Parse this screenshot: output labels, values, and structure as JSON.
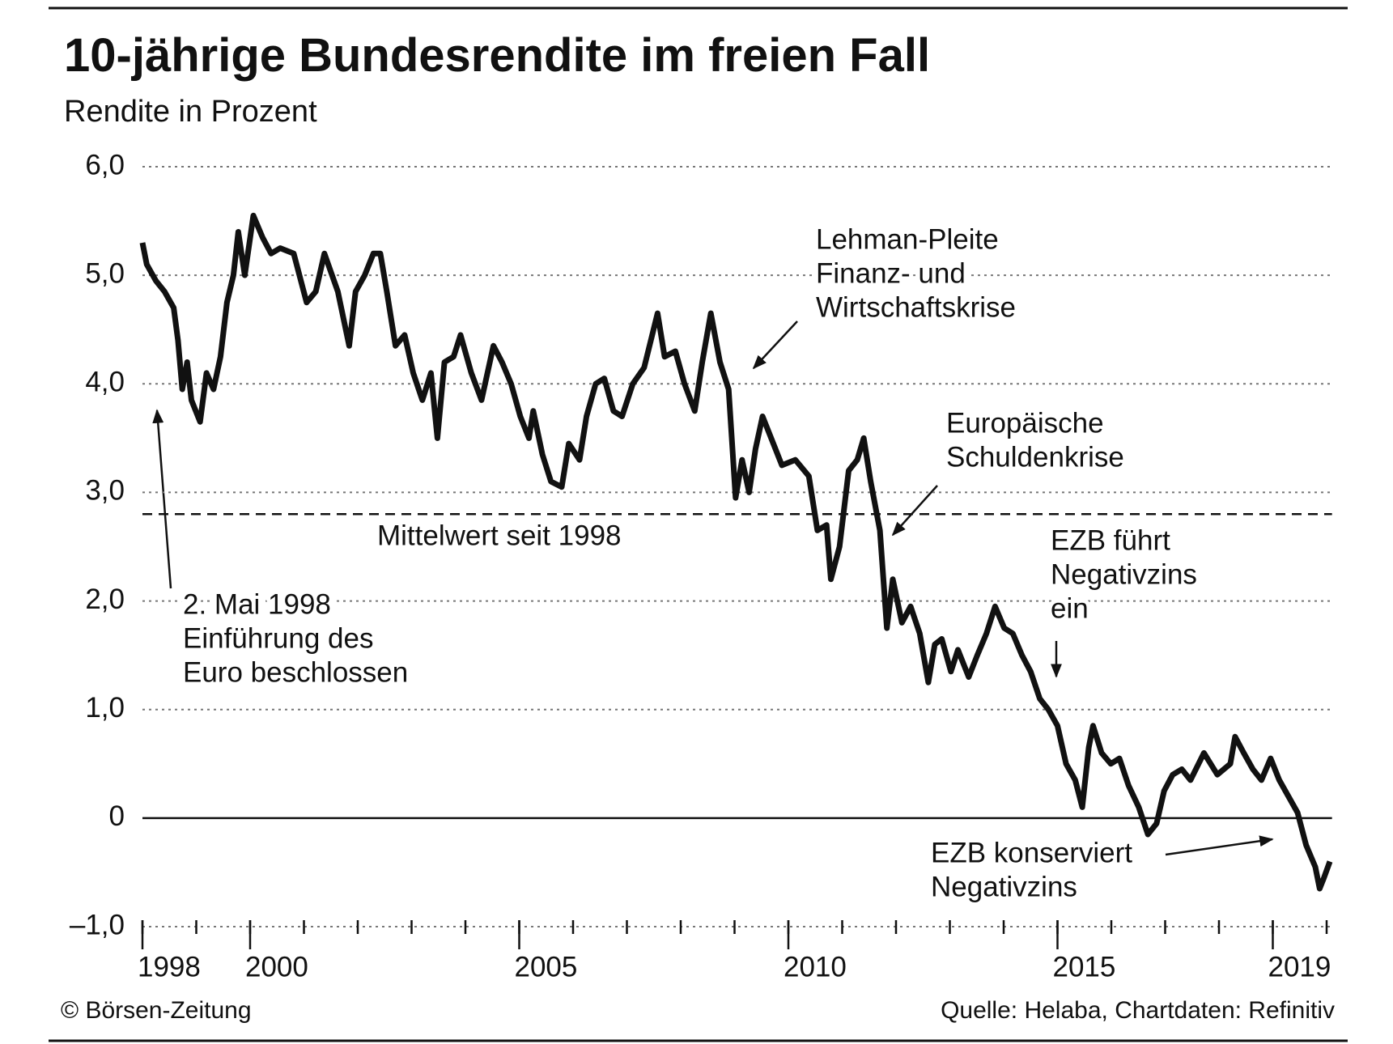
{
  "chart_data": {
    "type": "line",
    "title": "10-jährige Bundesrendite im freien Fall",
    "subtitle": "Rendite in Prozent",
    "x": [
      1998.0,
      1998.08,
      1998.25,
      1998.41,
      1998.58,
      1998.66,
      1998.74,
      1998.83,
      1998.91,
      1999.07,
      1999.19,
      1999.32,
      1999.45,
      1999.57,
      1999.69,
      1999.78,
      1999.9,
      2000.06,
      2000.23,
      2000.39,
      2000.56,
      2000.81,
      2001.05,
      2001.22,
      2001.38,
      2001.63,
      2001.84,
      2001.96,
      2002.13,
      2002.29,
      2002.42,
      2002.54,
      2002.7,
      2002.87,
      2003.03,
      2003.2,
      2003.36,
      2003.48,
      2003.61,
      2003.78,
      2003.91,
      2004.11,
      2004.3,
      2004.52,
      2004.68,
      2004.85,
      2005.02,
      2005.18,
      2005.26,
      2005.43,
      2005.59,
      2005.79,
      2005.92,
      2006.12,
      2006.25,
      2006.42,
      2006.58,
      2006.75,
      2006.91,
      2007.11,
      2007.32,
      2007.57,
      2007.7,
      2007.9,
      2008.07,
      2008.26,
      2008.4,
      2008.56,
      2008.73,
      2008.89,
      2009.02,
      2009.14,
      2009.27,
      2009.39,
      2009.52,
      2009.72,
      2009.88,
      2010.13,
      2010.38,
      2010.54,
      2010.71,
      2010.79,
      2010.95,
      2011.12,
      2011.28,
      2011.4,
      2011.53,
      2011.7,
      2011.83,
      2011.94,
      2012.11,
      2012.27,
      2012.44,
      2012.6,
      2012.72,
      2012.85,
      2013.02,
      2013.15,
      2013.35,
      2013.51,
      2013.68,
      2013.84,
      2014.01,
      2014.17,
      2014.34,
      2014.5,
      2014.67,
      2014.83,
      2015.0,
      2015.16,
      2015.33,
      2015.46,
      2015.58,
      2015.66,
      2015.82,
      2015.99,
      2016.15,
      2016.32,
      2016.51,
      2016.68,
      2016.84,
      2016.98,
      2017.14,
      2017.31,
      2017.47,
      2017.72,
      2017.97,
      2018.21,
      2018.3,
      2018.46,
      2018.63,
      2018.79,
      2018.96,
      2019.12,
      2019.29,
      2019.46,
      2019.62,
      2019.79,
      2019.87,
      2019.95,
      2020.06
    ],
    "series": [
      {
        "color": "#111111",
        "values": [
          5.3,
          5.1,
          4.95,
          4.85,
          4.7,
          4.4,
          3.95,
          4.2,
          3.85,
          3.65,
          4.1,
          3.95,
          4.25,
          4.75,
          5.0,
          5.4,
          5.0,
          5.55,
          5.35,
          5.2,
          5.25,
          5.2,
          4.75,
          4.85,
          5.2,
          4.85,
          4.35,
          4.85,
          5.0,
          5.2,
          5.2,
          4.85,
          4.35,
          4.45,
          4.1,
          3.85,
          4.1,
          3.5,
          4.2,
          4.25,
          4.45,
          4.1,
          3.85,
          4.35,
          4.2,
          4.0,
          3.7,
          3.5,
          3.75,
          3.35,
          3.1,
          3.05,
          3.45,
          3.3,
          3.7,
          4.0,
          4.05,
          3.75,
          3.7,
          4.0,
          4.15,
          4.65,
          4.25,
          4.3,
          4.0,
          3.75,
          4.2,
          4.65,
          4.2,
          3.95,
          2.95,
          3.3,
          3.0,
          3.4,
          3.7,
          3.45,
          3.25,
          3.3,
          3.15,
          2.65,
          2.7,
          2.2,
          2.5,
          3.2,
          3.3,
          3.5,
          3.1,
          2.65,
          1.75,
          2.2,
          1.8,
          1.95,
          1.7,
          1.25,
          1.6,
          1.65,
          1.35,
          1.55,
          1.3,
          1.5,
          1.7,
          1.95,
          1.75,
          1.7,
          1.5,
          1.35,
          1.1,
          1.0,
          0.85,
          0.5,
          0.35,
          0.1,
          0.65,
          0.85,
          0.6,
          0.5,
          0.55,
          0.3,
          0.1,
          -0.15,
          -0.05,
          0.25,
          0.4,
          0.45,
          0.35,
          0.6,
          0.4,
          0.5,
          0.75,
          0.6,
          0.45,
          0.35,
          0.55,
          0.35,
          0.2,
          0.05,
          -0.25,
          -0.45,
          -0.65,
          -0.55,
          -0.4
        ]
      }
    ],
    "xlim": [
      1998,
      2020.1
    ],
    "xticks": [
      1998,
      2000,
      2005,
      2010,
      2015,
      2019
    ],
    "ylim": [
      -1,
      6
    ],
    "yticks": [
      {
        "value": -1,
        "label": "–1,0"
      },
      0,
      {
        "value": 1,
        "label": "1,0"
      },
      {
        "value": 2,
        "label": "2,0"
      },
      {
        "value": 3,
        "label": "3,0"
      },
      {
        "value": 4,
        "label": "4,0"
      },
      {
        "value": 5,
        "label": "5,0"
      },
      {
        "value": 6,
        "label": "6,0"
      }
    ],
    "grid": true,
    "mean_line": {
      "value": 2.8,
      "label": "Mittelwert seit 1998"
    },
    "annotations": [
      {
        "lines": [
          "Lehman-Pleite",
          "Finanz- und",
          "Wirtschaftskrise"
        ]
      },
      {
        "lines": [
          "Europäische",
          "Schuldenkrise"
        ]
      },
      {
        "lines": [
          "EZB führt",
          "Negativzins",
          "ein"
        ]
      },
      {
        "lines": [
          "EZB konserviert",
          "Negativzins"
        ]
      },
      {
        "lines": [
          "2. Mai 1998",
          "Einführung des",
          "Euro beschlossen"
        ]
      }
    ],
    "source_left": "© Börsen-Zeitung",
    "source_right": "Quelle: Helaba, Chartdaten: Refinitiv"
  }
}
